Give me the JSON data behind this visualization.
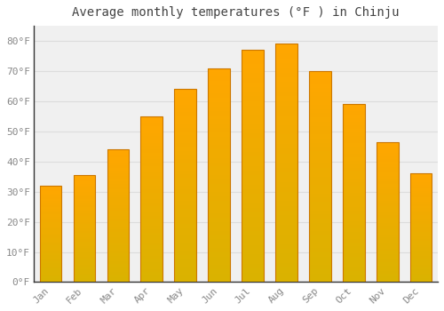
{
  "title": "Average monthly temperatures (°F ) in Chinju",
  "months": [
    "Jan",
    "Feb",
    "Mar",
    "Apr",
    "May",
    "Jun",
    "Jul",
    "Aug",
    "Sep",
    "Oct",
    "Nov",
    "Dec"
  ],
  "values": [
    32,
    35.5,
    44,
    55,
    64,
    71,
    77,
    79,
    70,
    59,
    46.5,
    36
  ],
  "bar_color": "#FFA500",
  "bar_edge_color": "#CC7700",
  "background_color": "#FFFFFF",
  "plot_bg_color": "#F0F0F0",
  "grid_color": "#DDDDDD",
  "tick_label_color": "#888888",
  "title_color": "#444444",
  "ylim": [
    0,
    85
  ],
  "yticks": [
    0,
    10,
    20,
    30,
    40,
    50,
    60,
    70,
    80
  ],
  "ytick_labels": [
    "0°F",
    "10°F",
    "20°F",
    "30°F",
    "40°F",
    "50°F",
    "60°F",
    "70°F",
    "80°F"
  ],
  "title_fontsize": 10,
  "tick_fontsize": 8,
  "bar_width": 0.65
}
